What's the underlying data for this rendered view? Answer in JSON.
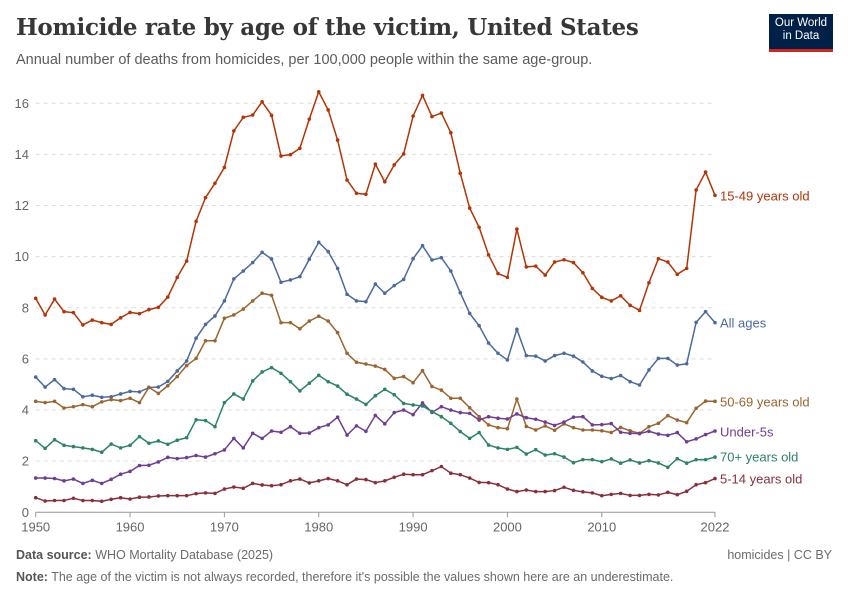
{
  "header": {
    "title": "Homicide rate by age of the victim, United States",
    "subtitle": "Annual number of deaths from homicides, per 100,000 people within the same age-group.",
    "logo": "Our World in Data"
  },
  "footer": {
    "source_label": "Data source:",
    "source": "WHO Mortality Database (2025)",
    "license": "homicides | CC BY",
    "note_label": "Note:",
    "note": "The age of the victim is not always recorded, therefore it's possible the values shown here are an underestimate."
  },
  "chart_data": {
    "type": "line",
    "title": "Homicide rate by age of the victim, United States",
    "xlabel": "",
    "ylabel": "",
    "xlim": [
      1950,
      2022
    ],
    "ylim": [
      0,
      16
    ],
    "grid": "horizontal dashed",
    "legend": "inline-right",
    "x_ticks": [
      "1950",
      "1960",
      "1970",
      "1980",
      "1990",
      "2000",
      "2010",
      "2022"
    ],
    "y_ticks": [
      "0",
      "2",
      "4",
      "6",
      "8",
      "10",
      "12",
      "14",
      "16"
    ],
    "x_start": 1950,
    "series": [
      {
        "name": "15-49 years old",
        "color": "#b13507",
        "values": [
          8.37,
          7.72,
          8.34,
          7.85,
          7.81,
          7.33,
          7.52,
          7.42,
          7.35,
          7.61,
          7.82,
          7.77,
          7.93,
          8.02,
          8.42,
          9.19,
          9.83,
          11.38,
          12.31,
          12.87,
          13.49,
          14.92,
          15.45,
          15.54,
          16.06,
          15.53,
          13.94,
          13.99,
          14.24,
          15.38,
          16.45,
          15.74,
          14.56,
          13.0,
          12.48,
          12.44,
          13.62,
          12.93,
          13.59,
          14.02,
          15.5,
          16.31,
          15.48,
          15.62,
          14.85,
          13.26,
          11.9,
          11.15,
          10.07,
          9.34,
          9.19,
          11.08,
          9.6,
          9.63,
          9.28,
          9.79,
          9.88,
          9.77,
          9.37,
          8.76,
          8.41,
          8.27,
          8.47,
          8.1,
          7.9,
          8.98,
          9.92,
          9.79,
          9.31,
          9.54,
          12.61,
          13.31,
          12.4
        ]
      },
      {
        "name": "All ages",
        "color": "#4c6a9c",
        "values": [
          5.29,
          4.9,
          5.19,
          4.84,
          4.81,
          4.52,
          4.58,
          4.5,
          4.52,
          4.63,
          4.73,
          4.71,
          4.88,
          4.9,
          5.12,
          5.53,
          5.92,
          6.81,
          7.35,
          7.68,
          8.27,
          9.13,
          9.44,
          9.77,
          10.17,
          9.91,
          9.0,
          9.09,
          9.22,
          9.9,
          10.56,
          10.2,
          9.54,
          8.53,
          8.27,
          8.24,
          8.93,
          8.57,
          8.87,
          9.11,
          9.92,
          10.43,
          9.87,
          9.96,
          9.44,
          8.59,
          7.78,
          7.3,
          6.62,
          6.22,
          5.96,
          7.16,
          6.13,
          6.11,
          5.92,
          6.13,
          6.22,
          6.11,
          5.88,
          5.53,
          5.32,
          5.23,
          5.35,
          5.11,
          4.98,
          5.57,
          6.02,
          6.02,
          5.76,
          5.81,
          7.43,
          7.85,
          7.42
        ]
      },
      {
        "name": "50-69 years old",
        "color": "#9a652e",
        "values": [
          4.34,
          4.29,
          4.34,
          4.08,
          4.13,
          4.21,
          4.13,
          4.32,
          4.41,
          4.37,
          4.46,
          4.29,
          4.89,
          4.65,
          4.95,
          5.31,
          5.74,
          6.02,
          6.71,
          6.71,
          7.59,
          7.72,
          7.95,
          8.27,
          8.57,
          8.49,
          7.42,
          7.42,
          7.18,
          7.48,
          7.67,
          7.48,
          7.03,
          6.22,
          5.87,
          5.8,
          5.72,
          5.59,
          5.24,
          5.31,
          5.07,
          5.54,
          4.92,
          4.78,
          4.46,
          4.46,
          4.09,
          3.74,
          3.42,
          3.31,
          3.27,
          4.43,
          3.36,
          3.22,
          3.38,
          3.21,
          3.46,
          3.31,
          3.22,
          3.22,
          3.19,
          3.12,
          3.32,
          3.19,
          3.09,
          3.35,
          3.48,
          3.78,
          3.61,
          3.51,
          4.07,
          4.35,
          4.34
        ]
      },
      {
        "name": "Under-5s",
        "color": "#6d3e91",
        "values": [
          1.34,
          1.34,
          1.32,
          1.23,
          1.3,
          1.13,
          1.25,
          1.13,
          1.29,
          1.49,
          1.6,
          1.83,
          1.84,
          1.97,
          2.15,
          2.1,
          2.14,
          2.22,
          2.16,
          2.29,
          2.44,
          2.89,
          2.52,
          3.09,
          2.89,
          3.18,
          3.13,
          3.35,
          3.09,
          3.1,
          3.31,
          3.42,
          3.72,
          3.02,
          3.38,
          3.17,
          3.79,
          3.46,
          3.9,
          4.0,
          3.82,
          4.28,
          3.91,
          4.13,
          4.0,
          3.9,
          3.87,
          3.61,
          3.74,
          3.68,
          3.65,
          3.85,
          3.7,
          3.64,
          3.53,
          3.4,
          3.53,
          3.72,
          3.74,
          3.42,
          3.43,
          3.47,
          3.13,
          3.09,
          3.08,
          3.17,
          3.06,
          3.01,
          3.12,
          2.76,
          2.87,
          3.04,
          3.18
        ]
      },
      {
        "name": "70+ years old",
        "color": "#2c8465",
        "values": [
          2.8,
          2.5,
          2.84,
          2.62,
          2.57,
          2.52,
          2.46,
          2.35,
          2.67,
          2.52,
          2.62,
          2.96,
          2.7,
          2.79,
          2.66,
          2.82,
          2.92,
          3.62,
          3.59,
          3.35,
          4.29,
          4.63,
          4.43,
          5.14,
          5.49,
          5.66,
          5.44,
          5.11,
          4.75,
          5.05,
          5.36,
          5.11,
          4.94,
          4.62,
          4.43,
          4.22,
          4.56,
          4.81,
          4.6,
          4.26,
          4.2,
          4.16,
          3.94,
          3.74,
          3.48,
          3.16,
          2.89,
          3.12,
          2.63,
          2.52,
          2.46,
          2.54,
          2.28,
          2.45,
          2.24,
          2.29,
          2.16,
          1.94,
          2.06,
          2.06,
          1.98,
          2.09,
          1.92,
          2.05,
          1.93,
          2.02,
          1.93,
          1.76,
          2.1,
          1.92,
          2.06,
          2.06,
          2.16
        ]
      },
      {
        "name": "5-14 years old",
        "color": "#883039",
        "values": [
          0.57,
          0.44,
          0.46,
          0.46,
          0.55,
          0.46,
          0.46,
          0.43,
          0.51,
          0.57,
          0.52,
          0.59,
          0.6,
          0.64,
          0.65,
          0.65,
          0.65,
          0.73,
          0.76,
          0.74,
          0.91,
          0.99,
          0.94,
          1.13,
          1.07,
          1.04,
          1.08,
          1.23,
          1.3,
          1.15,
          1.23,
          1.32,
          1.23,
          1.08,
          1.3,
          1.28,
          1.16,
          1.23,
          1.37,
          1.49,
          1.47,
          1.47,
          1.63,
          1.79,
          1.53,
          1.47,
          1.34,
          1.17,
          1.16,
          1.08,
          0.91,
          0.81,
          0.87,
          0.81,
          0.81,
          0.85,
          0.98,
          0.86,
          0.8,
          0.76,
          0.65,
          0.7,
          0.74,
          0.66,
          0.66,
          0.7,
          0.68,
          0.78,
          0.69,
          0.82,
          1.08,
          1.16,
          1.32
        ]
      }
    ]
  }
}
